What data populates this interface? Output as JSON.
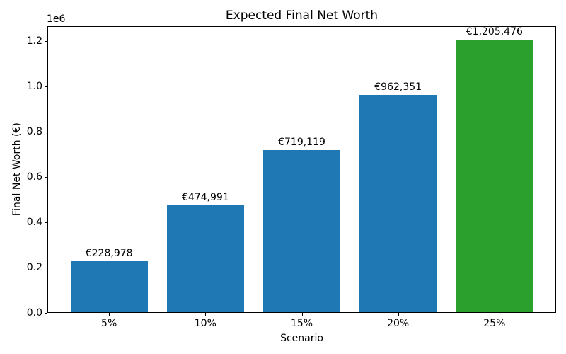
{
  "chart_data": {
    "type": "bar",
    "title": "Expected Final Net Worth",
    "xlabel": "Scenario",
    "ylabel": "Final Net Worth (€)",
    "categories": [
      "5%",
      "10%",
      "15%",
      "20%",
      "25%"
    ],
    "values": [
      228978,
      474991,
      719119,
      962351,
      1205476
    ],
    "bar_labels": [
      "€228,978",
      "€474,991",
      "€719,119",
      "€962,351",
      "€1,205,476"
    ],
    "bar_colors": [
      "#1f77b4",
      "#1f77b4",
      "#1f77b4",
      "#1f77b4",
      "#2ca02c"
    ],
    "y_axis": {
      "offset_label": "1e6",
      "tick_labels": [
        "0.0",
        "0.2",
        "0.4",
        "0.6",
        "0.8",
        "1.0",
        "1.2"
      ],
      "tick_values": [
        0,
        200000,
        400000,
        600000,
        800000,
        1000000,
        1200000
      ],
      "ylim": [
        0,
        1265750
      ]
    },
    "grid": false,
    "legend_position": "none",
    "colors": {
      "default_bar": "#1f77b4",
      "highlight_bar": "#2ca02c",
      "text": "#000000",
      "background": "#ffffff"
    }
  }
}
